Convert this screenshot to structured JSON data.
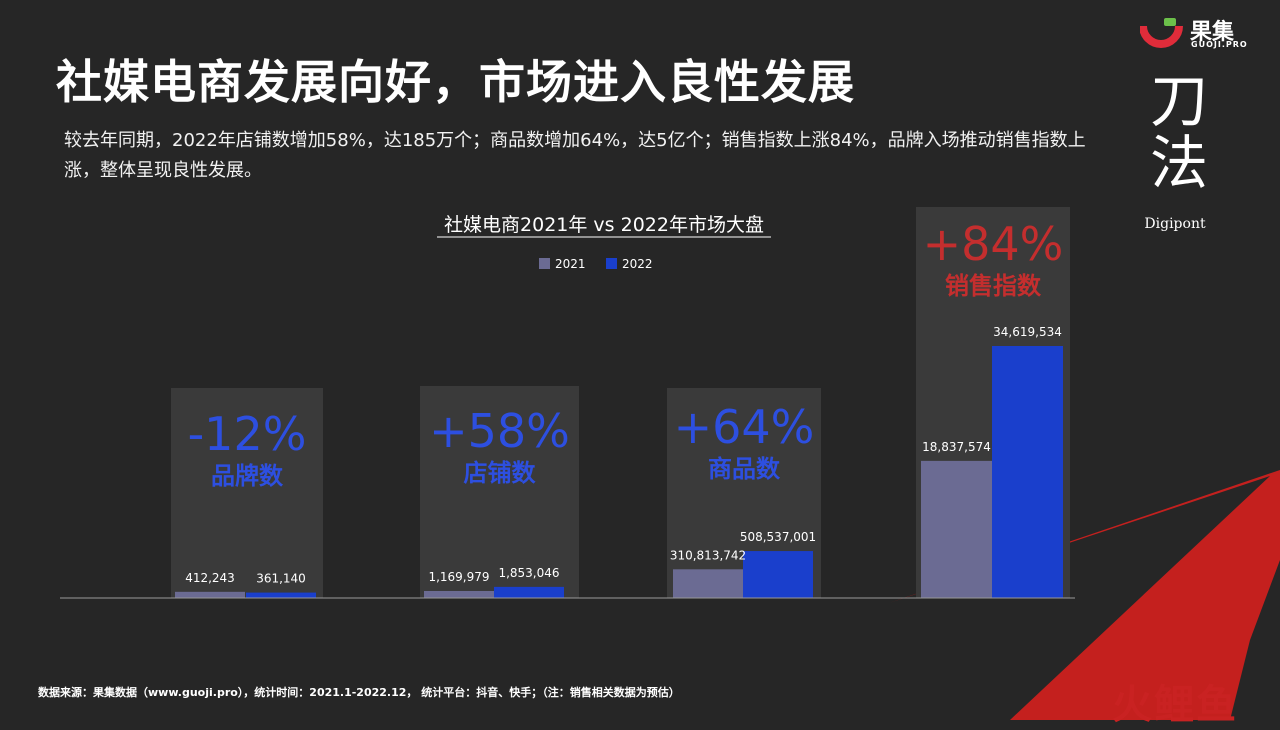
{
  "header": {
    "title": "社媒电商发展向好，市场进入良性发展",
    "subtitle": "较去年同期，2022年店铺数增加58%，达185万个；商品数增加64%，达5亿个；销售指数上涨84%，品牌入场推动销售指数上涨，整体呈现良性发展。"
  },
  "logo": {
    "name_cn": "果集",
    "name_en": "GUOJI.PRO",
    "icon": "guoji-logo-icon"
  },
  "brand": {
    "text": "刀法",
    "english": "Digipont"
  },
  "footer": {
    "source": "数据来源：果集数据（www.guoji.pro），统计时间：2021.1-2022.12， 统计平台：抖音、快手；（注：销售相关数据为预估）"
  },
  "watermark": {
    "text": "火鲤鱼"
  },
  "colors": {
    "background": "#262626",
    "bar_2021": "#6b6b93",
    "bar_2022": "#1a3fcc",
    "highlight_blue": "#2d4fe0",
    "highlight_red": "#c42e2e",
    "panel": "#3a3a3a",
    "accent_red": "#c4201e"
  },
  "chart_data": {
    "type": "bar",
    "title": "社媒电商2021年 vs 2022年市场大盘",
    "categories": [
      "品牌数",
      "店铺数",
      "商品数",
      "销售指数"
    ],
    "series": [
      {
        "name": "2021",
        "values": [
          412243,
          1169979,
          310813742,
          18837574
        ],
        "labels": [
          "412,243",
          "1,169,979",
          "310,813,742",
          "18,837,574"
        ]
      },
      {
        "name": "2022",
        "values": [
          361140,
          1853046,
          508537001,
          34619534
        ],
        "labels": [
          "361,140",
          "1,853,046",
          "508,537,001",
          "34,619,534"
        ]
      }
    ],
    "changes": [
      "-12%",
      "+58%",
      "+64%",
      "+84%"
    ],
    "grid": false,
    "legend": "top-center",
    "note": "each category drawn on its own scale"
  }
}
